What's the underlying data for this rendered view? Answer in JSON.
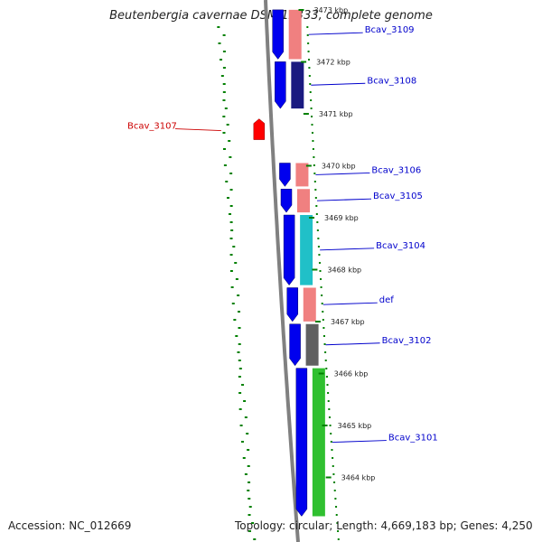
{
  "title": "Beutenbergia cavernae DSM 12333, complete genome",
  "footer": {
    "accession": "Accession: NC_012669",
    "topology": "Topology: circular; Length: 4,669,183 bp; Genes: 4,250"
  },
  "colors": {
    "forward_cds": "#0000ee",
    "reverse_cds": "#ff0000",
    "label_forward": "#0000cc",
    "label_reverse": "#cc0000",
    "backbone": "#808080",
    "gc_marks": "#008000"
  },
  "genes": [
    {
      "name": "Bcav_3109",
      "strand": "+",
      "start_kbp": 3472.0,
      "end_kbp": 3472.95,
      "cog_color": "#f08080"
    },
    {
      "name": "Bcav_3108",
      "strand": "+",
      "start_kbp": 3471.05,
      "end_kbp": 3471.95,
      "cog_color": "#1a1a80"
    },
    {
      "name": "Bcav_3107",
      "strand": "-",
      "start_kbp": 3470.5,
      "end_kbp": 3470.75,
      "cog_color": null
    },
    {
      "name": "Bcav_3106",
      "strand": "+",
      "start_kbp": 3470.0,
      "end_kbp": 3469.55,
      "cog_color": "#f08080"
    },
    {
      "name": "Bcav_3105",
      "strand": "+",
      "start_kbp": 3469.5,
      "end_kbp": 3469.05,
      "cog_color": "#f08080"
    },
    {
      "name": "Bcav_3104",
      "strand": "+",
      "start_kbp": 3469.0,
      "end_kbp": 3467.65,
      "cog_color": "#20c0c8"
    },
    {
      "name": "def",
      "strand": "+",
      "start_kbp": 3467.6,
      "end_kbp": 3466.95,
      "cog_color": "#f08080"
    },
    {
      "name": "Bcav_3102",
      "strand": "+",
      "start_kbp": 3466.9,
      "end_kbp": 3466.1,
      "cog_color": "#606060"
    },
    {
      "name": "Bcav_3101",
      "strand": "+",
      "start_kbp": 3466.05,
      "end_kbp": 3463.2,
      "cog_color": "#30c030"
    }
  ],
  "ticks": [
    "3473 kbp",
    "3472 kbp",
    "3471 kbp",
    "3470 kbp",
    "3469 kbp",
    "3468 kbp",
    "3467 kbp",
    "3466 kbp",
    "3465 kbp",
    "3464 kbp"
  ]
}
